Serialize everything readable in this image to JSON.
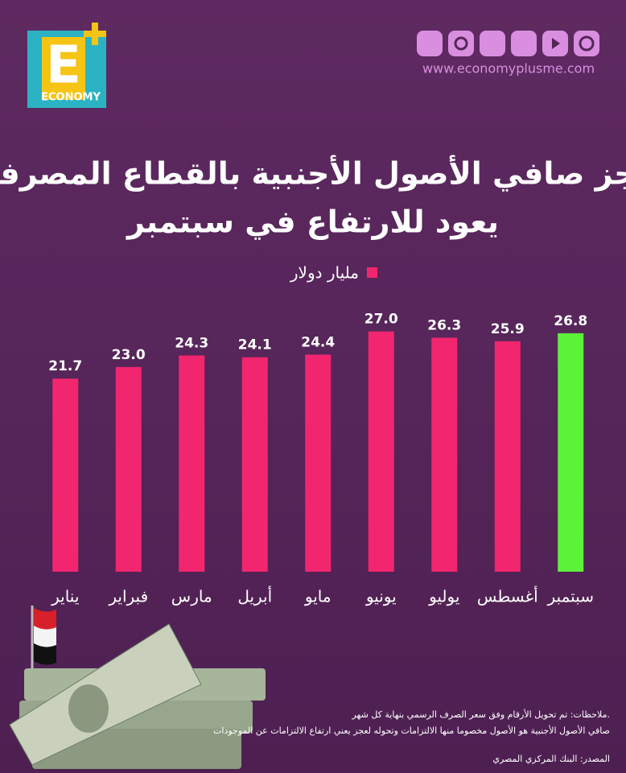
{
  "header": {
    "logo_letter": "E",
    "logo_text": "ECONOMY",
    "website": "www.economyplusme.com"
  },
  "chart_data": {
    "type": "bar",
    "title": [
      "عجز صافي الأصول الأجنبية بالقطاع المصرفي",
      "يعود للارتفاع في سبتمبر"
    ],
    "categories": [
      "يناير",
      "فبراير",
      "مارس",
      "أبريل",
      "مايو",
      "يونيو",
      "يوليو",
      "أغسطس",
      "سبتمبر"
    ],
    "series": [
      {
        "name": "مليار دولار",
        "color": "#f2266f",
        "colors": [
          "#f2266f",
          "#f2266f",
          "#f2266f",
          "#f2266f",
          "#f2266f",
          "#f2266f",
          "#f2266f",
          "#f2266f",
          "#5cf23a"
        ],
        "values": [
          21.7,
          23.0,
          24.3,
          24.1,
          24.4,
          27.0,
          26.3,
          25.9,
          26.8
        ],
        "value_labels": [
          "21.7",
          "23.0",
          "24.3",
          "24.1",
          "24.4",
          "27.0",
          "26.3",
          "25.9",
          "26.8"
        ]
      }
    ]
  },
  "footer": {
    "notes": [
      "ملاحظات: تم تحويل الأرقام وفق سعر الصرف الرسمي بنهاية كل شهر.",
      "صافي الأصول الأجنبية هو الأصول مخصوما منها الالتزامات وتحوله لعجز يعني ارتفاع الالتزامات عن الموجودات"
    ],
    "source": "المصدر: البنك المركزي المصري"
  }
}
